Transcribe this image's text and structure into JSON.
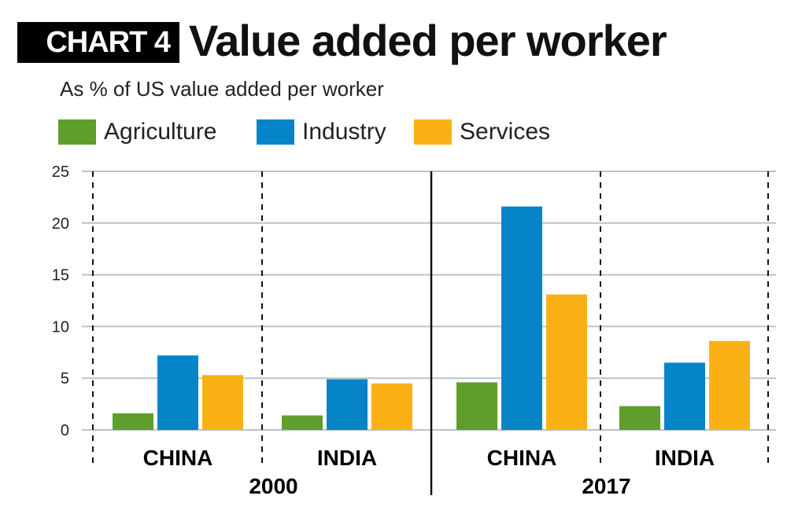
{
  "header": {
    "badge": "CHART 4",
    "title": "Value added per worker"
  },
  "subtitle": "As % of US value added per worker",
  "legend": [
    {
      "label": "Agriculture",
      "color": "#5f9e2a"
    },
    {
      "label": "Industry",
      "color": "#0585c8"
    },
    {
      "label": "Services",
      "color": "#fbb116"
    }
  ],
  "chart_data": {
    "type": "bar",
    "ylabel": "As % of US value added per worker",
    "ylim": [
      0,
      25
    ],
    "yticks": [
      "0",
      "5",
      "10",
      "15",
      "20",
      "25"
    ],
    "grid": true,
    "legend_position": "top",
    "groups": [
      {
        "year": "2000",
        "countries": [
          {
            "name": "CHINA",
            "values": [
              1.6,
              7.2,
              5.3
            ]
          },
          {
            "name": "INDIA",
            "values": [
              1.4,
              4.9,
              4.5
            ]
          }
        ]
      },
      {
        "year": "2017",
        "countries": [
          {
            "name": "CHINA",
            "values": [
              4.6,
              21.6,
              13.1
            ]
          },
          {
            "name": "INDIA",
            "values": [
              2.3,
              6.5,
              8.6
            ]
          }
        ]
      }
    ],
    "series": [
      {
        "name": "Agriculture",
        "color": "#5f9e2a"
      },
      {
        "name": "Industry",
        "color": "#0585c8"
      },
      {
        "name": "Services",
        "color": "#fbb116"
      }
    ]
  }
}
